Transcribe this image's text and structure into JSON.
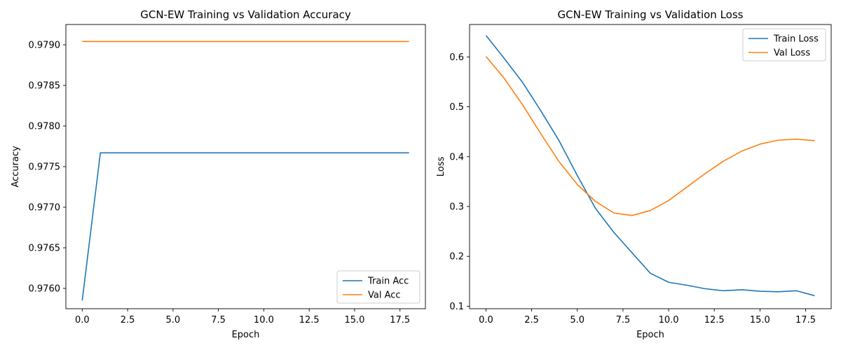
{
  "chart_data": [
    {
      "type": "line",
      "title": "GCN-EW Training vs Validation Accuracy",
      "xlabel": "Epoch",
      "ylabel": "Accuracy",
      "xlim": [
        -0.9,
        18.9
      ],
      "ylim": [
        0.97575,
        0.97925
      ],
      "xticks": [
        0.0,
        2.5,
        5.0,
        7.5,
        10.0,
        12.5,
        15.0,
        17.5
      ],
      "xtick_labels": [
        "0.0",
        "2.5",
        "5.0",
        "7.5",
        "10.0",
        "12.5",
        "15.0",
        "17.5"
      ],
      "yticks": [
        0.976,
        0.9765,
        0.977,
        0.9775,
        0.978,
        0.9785,
        0.979
      ],
      "ytick_labels": [
        "0.9760",
        "0.9765",
        "0.9770",
        "0.9775",
        "0.9780",
        "0.9785",
        "0.9790"
      ],
      "grid": false,
      "legend_position": "lower-right",
      "x": [
        0,
        1,
        2,
        3,
        4,
        5,
        6,
        7,
        8,
        9,
        10,
        11,
        12,
        13,
        14,
        15,
        16,
        17,
        18
      ],
      "series": [
        {
          "name": "Train Acc",
          "color": "#1f77b4",
          "values": [
            0.97585,
            0.97767,
            0.97767,
            0.97767,
            0.97767,
            0.97767,
            0.97767,
            0.97767,
            0.97767,
            0.97767,
            0.97767,
            0.97767,
            0.97767,
            0.97767,
            0.97767,
            0.97767,
            0.97767,
            0.97767,
            0.97767
          ]
        },
        {
          "name": "Val Acc",
          "color": "#ff7f0e",
          "values": [
            0.97904,
            0.97904,
            0.97904,
            0.97904,
            0.97904,
            0.97904,
            0.97904,
            0.97904,
            0.97904,
            0.97904,
            0.97904,
            0.97904,
            0.97904,
            0.97904,
            0.97904,
            0.97904,
            0.97904,
            0.97904,
            0.97904
          ]
        }
      ]
    },
    {
      "type": "line",
      "title": "GCN-EW Training vs Validation Loss",
      "xlabel": "Epoch",
      "ylabel": "Loss",
      "xlim": [
        -0.9,
        18.9
      ],
      "ylim": [
        0.095,
        0.665
      ],
      "xticks": [
        0.0,
        2.5,
        5.0,
        7.5,
        10.0,
        12.5,
        15.0,
        17.5
      ],
      "xtick_labels": [
        "0.0",
        "2.5",
        "5.0",
        "7.5",
        "10.0",
        "12.5",
        "15.0",
        "17.5"
      ],
      "yticks": [
        0.1,
        0.2,
        0.3,
        0.4,
        0.5,
        0.6
      ],
      "ytick_labels": [
        "0.1",
        "0.2",
        "0.3",
        "0.4",
        "0.5",
        "0.6"
      ],
      "grid": false,
      "legend_position": "upper-right",
      "x": [
        0,
        1,
        2,
        3,
        4,
        5,
        6,
        7,
        8,
        9,
        10,
        11,
        12,
        13,
        14,
        15,
        16,
        17,
        18
      ],
      "series": [
        {
          "name": "Train Loss",
          "color": "#1f77b4",
          "values": [
            0.643,
            0.597,
            0.549,
            0.492,
            0.432,
            0.362,
            0.296,
            0.248,
            0.207,
            0.166,
            0.148,
            0.142,
            0.135,
            0.131,
            0.133,
            0.13,
            0.129,
            0.131,
            0.121
          ]
        },
        {
          "name": "Val Loss",
          "color": "#ff7f0e",
          "values": [
            0.601,
            0.557,
            0.504,
            0.446,
            0.39,
            0.344,
            0.31,
            0.287,
            0.282,
            0.292,
            0.312,
            0.339,
            0.366,
            0.391,
            0.411,
            0.425,
            0.433,
            0.435,
            0.432
          ]
        }
      ]
    }
  ]
}
